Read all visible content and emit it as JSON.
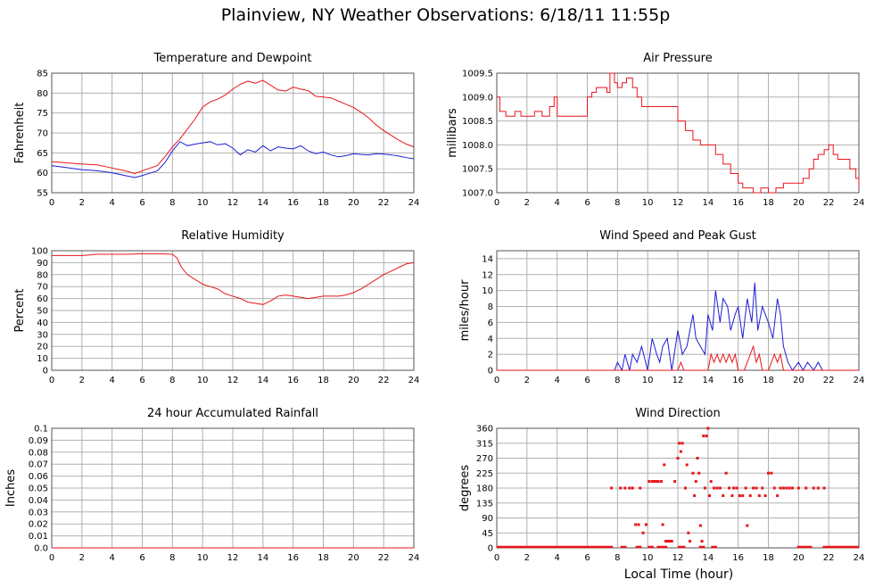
{
  "page": {
    "title": "Plainview, NY Weather Observations: 6/18/11 11:55p",
    "xlabel": "Local Time (hour)"
  },
  "colors": {
    "red": "#e8151b",
    "blue": "#1d1dd8",
    "grid": "#b0b0b0",
    "frame": "#555555"
  },
  "chart_data": [
    {
      "id": "temp",
      "type": "line",
      "title": "Temperature and Dewpoint",
      "ylabel": "Fahrenheit",
      "xlabel": "",
      "xlim": [
        0,
        24
      ],
      "ylim": [
        55,
        85
      ],
      "xticks": [
        "0",
        "2",
        "4",
        "6",
        "8",
        "10",
        "12",
        "14",
        "16",
        "18",
        "20",
        "22",
        "24"
      ],
      "yticks": [
        "55",
        "60",
        "65",
        "70",
        "75",
        "80",
        "85"
      ],
      "grid": true,
      "series": [
        {
          "color": "red",
          "x": [
            0,
            1,
            2,
            3,
            4,
            5,
            5.5,
            6,
            7,
            7.5,
            8,
            8.5,
            9,
            9.5,
            10,
            10.5,
            11,
            11.5,
            12,
            12.5,
            13,
            13.5,
            14,
            14.5,
            15,
            15.5,
            16,
            16.5,
            17,
            17.5,
            18,
            18.5,
            19,
            19.5,
            20,
            20.5,
            21,
            21.5,
            22,
            22.5,
            23,
            23.5,
            24
          ],
          "y": [
            62.8,
            62.5,
            62.2,
            62.0,
            61.2,
            60.4,
            59.8,
            60.5,
            61.8,
            64.0,
            66.5,
            68.5,
            71.0,
            73.5,
            76.5,
            77.8,
            78.5,
            79.5,
            81.0,
            82.2,
            83.0,
            82.5,
            83.2,
            82.0,
            80.8,
            80.5,
            81.5,
            81.0,
            80.6,
            79.2,
            79.0,
            78.8,
            78.0,
            77.2,
            76.4,
            75.2,
            73.8,
            72.0,
            70.6,
            69.4,
            68.2,
            67.2,
            66.5
          ]
        },
        {
          "color": "blue",
          "x": [
            0,
            1,
            2,
            3,
            4,
            5,
            5.5,
            6,
            7,
            7.5,
            8,
            8.5,
            9,
            9.5,
            10,
            10.5,
            11,
            11.5,
            12,
            12.5,
            13,
            13.5,
            14,
            14.5,
            15,
            15.5,
            16,
            16.5,
            17,
            17.5,
            18,
            18.5,
            19,
            19.5,
            20,
            20.5,
            21,
            21.5,
            22,
            22.5,
            23,
            23.5,
            24
          ],
          "y": [
            61.8,
            61.3,
            60.8,
            60.5,
            60.0,
            59.2,
            58.8,
            59.3,
            60.5,
            62.5,
            65.5,
            67.8,
            66.8,
            67.2,
            67.5,
            67.8,
            67.0,
            67.3,
            66.2,
            64.5,
            65.8,
            65.2,
            66.8,
            65.5,
            66.5,
            66.2,
            66.0,
            66.8,
            65.5,
            64.8,
            65.2,
            64.5,
            64.0,
            64.3,
            64.8,
            64.6,
            64.5,
            64.8,
            64.7,
            64.5,
            64.2,
            63.8,
            63.5
          ]
        }
      ]
    },
    {
      "id": "pressure",
      "type": "line",
      "title": "Air Pressure",
      "ylabel": "millibars",
      "xlabel": "",
      "xlim": [
        0,
        24
      ],
      "ylim": [
        1007.0,
        1009.5
      ],
      "xticks": [
        "0",
        "2",
        "4",
        "6",
        "8",
        "10",
        "12",
        "14",
        "16",
        "18",
        "20",
        "22",
        "24"
      ],
      "yticks": [
        "1007.0",
        "1007.5",
        "1008.0",
        "1008.5",
        "1009.0",
        "1009.5"
      ],
      "grid": true,
      "series": [
        {
          "color": "red",
          "step": true,
          "x": [
            0,
            0.2,
            0.6,
            1.2,
            1.6,
            2,
            2.5,
            3,
            3.5,
            3.8,
            4,
            5,
            5.8,
            6,
            6.3,
            6.6,
            7,
            7.3,
            7.5,
            7.8,
            8,
            8.3,
            8.6,
            9,
            9.3,
            9.6,
            10,
            10.5,
            11,
            11.5,
            12,
            12.5,
            13,
            13.5,
            14,
            14.5,
            15,
            15.5,
            16,
            16.3,
            16.6,
            17,
            17.5,
            18,
            18.5,
            19,
            19.5,
            20,
            20.3,
            20.7,
            21,
            21.3,
            21.7,
            22,
            22.3,
            22.6,
            23,
            23.4,
            23.8,
            24
          ],
          "y": [
            1009.0,
            1008.7,
            1008.6,
            1008.7,
            1008.6,
            1008.6,
            1008.7,
            1008.6,
            1008.8,
            1009.0,
            1008.6,
            1008.6,
            1008.6,
            1009.0,
            1009.1,
            1009.2,
            1009.2,
            1009.1,
            1009.5,
            1009.3,
            1009.2,
            1009.3,
            1009.4,
            1009.2,
            1009.0,
            1008.8,
            1008.8,
            1008.8,
            1008.8,
            1008.8,
            1008.5,
            1008.3,
            1008.1,
            1008.0,
            1008.0,
            1007.8,
            1007.6,
            1007.4,
            1007.2,
            1007.1,
            1007.1,
            1007.0,
            1007.1,
            1007.0,
            1007.1,
            1007.2,
            1007.2,
            1007.2,
            1007.3,
            1007.5,
            1007.7,
            1007.8,
            1007.9,
            1008.0,
            1007.8,
            1007.7,
            1007.7,
            1007.5,
            1007.3,
            1007.1
          ]
        }
      ]
    },
    {
      "id": "humidity",
      "type": "line",
      "title": "Relative Humidity",
      "ylabel": "Percent",
      "xlabel": "",
      "xlim": [
        0,
        24
      ],
      "ylim": [
        0,
        100
      ],
      "xticks": [
        "0",
        "2",
        "4",
        "6",
        "8",
        "10",
        "12",
        "14",
        "16",
        "18",
        "20",
        "22",
        "24"
      ],
      "yticks": [
        "0",
        "10",
        "20",
        "30",
        "40",
        "50",
        "60",
        "70",
        "80",
        "90",
        "100"
      ],
      "grid": true,
      "series": [
        {
          "color": "red",
          "x": [
            0,
            1,
            2,
            2.5,
            3,
            4,
            5,
            6,
            7,
            8,
            8.3,
            8.6,
            9,
            9.5,
            10,
            10.5,
            11,
            11.5,
            12,
            12.5,
            13,
            13.5,
            14,
            14.5,
            15,
            15.5,
            16,
            16.5,
            17,
            17.5,
            18,
            18.5,
            19,
            19.5,
            20,
            20.5,
            21,
            21.5,
            22,
            22.5,
            23,
            23.5,
            24
          ],
          "y": [
            96,
            96,
            96,
            96.5,
            97,
            97,
            97,
            97.5,
            97.5,
            97,
            94,
            86,
            80,
            76,
            72,
            70,
            68,
            64,
            62,
            60,
            57,
            56,
            55,
            58,
            62,
            63,
            62,
            61,
            60,
            61,
            62,
            62,
            62,
            63,
            65,
            68,
            72,
            76,
            80,
            83,
            86,
            89,
            90
          ]
        }
      ]
    },
    {
      "id": "wind",
      "type": "line",
      "title": "Wind Speed and Peak Gust",
      "ylabel": "miles/hour",
      "xlabel": "",
      "xlim": [
        0,
        24
      ],
      "ylim": [
        0,
        15
      ],
      "xticks": [
        "0",
        "2",
        "4",
        "6",
        "8",
        "10",
        "12",
        "14",
        "16",
        "18",
        "20",
        "22",
        "24"
      ],
      "yticks": [
        "0",
        "2",
        "4",
        "6",
        "8",
        "10",
        "12",
        "14"
      ],
      "grid": true,
      "series": [
        {
          "color": "blue",
          "x": [
            0,
            7.8,
            8,
            8.3,
            8.5,
            8.8,
            9,
            9.3,
            9.6,
            10,
            10.3,
            10.6,
            10.8,
            11,
            11.3,
            11.6,
            12,
            12.3,
            12.6,
            13,
            13.2,
            13.5,
            13.8,
            14,
            14.3,
            14.5,
            14.8,
            15,
            15.3,
            15.5,
            15.8,
            16,
            16.3,
            16.6,
            16.9,
            17.1,
            17.3,
            17.6,
            18,
            18.3,
            18.6,
            18.8,
            19,
            19.3,
            19.6,
            20,
            20.3,
            20.6,
            21,
            21.3,
            21.6,
            22,
            24
          ],
          "y": [
            0,
            0,
            1,
            0,
            2,
            0,
            2,
            1,
            3,
            0,
            4,
            2,
            1,
            3,
            4,
            0,
            5,
            2,
            3,
            7,
            4,
            3,
            2,
            7,
            5,
            10,
            6,
            9,
            8,
            5,
            7,
            8,
            4,
            9,
            6,
            11,
            5,
            8,
            6,
            4,
            9,
            7,
            3,
            1,
            0,
            1,
            0,
            1,
            0,
            1,
            0,
            0,
            0
          ]
        },
        {
          "color": "red",
          "x": [
            0,
            11.8,
            12,
            12.2,
            12.4,
            13.8,
            14,
            14.2,
            14.4,
            14.6,
            14.8,
            15,
            15.2,
            15.4,
            15.6,
            15.8,
            16,
            16.4,
            16.6,
            16.8,
            17,
            17.2,
            17.4,
            17.6,
            18,
            18.2,
            18.4,
            18.6,
            18.8,
            19,
            24
          ],
          "y": [
            0,
            0,
            0,
            1,
            0,
            0,
            0,
            2,
            1,
            2,
            1,
            2,
            1,
            2,
            1,
            2,
            0,
            0,
            1,
            2,
            3,
            1,
            2,
            0,
            0,
            1,
            2,
            1,
            2,
            0,
            0
          ]
        }
      ]
    },
    {
      "id": "rain",
      "type": "line",
      "title": "24 hour Accumulated Rainfall",
      "ylabel": "Inches",
      "xlabel": "",
      "xlim": [
        0,
        24
      ],
      "ylim": [
        0,
        0.1
      ],
      "xticks": [
        "0",
        "2",
        "4",
        "6",
        "8",
        "10",
        "12",
        "14",
        "16",
        "18",
        "20",
        "22",
        "24"
      ],
      "yticks": [
        "0.0",
        "0.01",
        "0.02",
        "0.03",
        "0.04",
        "0.05",
        "0.06",
        "0.07",
        "0.08",
        "0.09",
        "0.1"
      ],
      "grid": true,
      "series": [
        {
          "color": "red",
          "x": [
            0,
            24
          ],
          "y": [
            0,
            0
          ]
        }
      ]
    },
    {
      "id": "direction",
      "type": "scatter",
      "title": "Wind Direction",
      "ylabel": "degrees",
      "xlabel": "",
      "xlim": [
        0,
        24
      ],
      "ylim": [
        0,
        360
      ],
      "xticks": [
        "0",
        "2",
        "4",
        "6",
        "8",
        "10",
        "12",
        "14",
        "16",
        "18",
        "20",
        "22",
        "24"
      ],
      "yticks": [
        "0",
        "45",
        "90",
        "135",
        "180",
        "225",
        "270",
        "315",
        "360"
      ],
      "grid": true,
      "baseline": {
        "y": 0,
        "ranges": [
          [
            0,
            7.7
          ],
          [
            8.2,
            8.6
          ],
          [
            9.2,
            9.6
          ],
          [
            10.0,
            10.4
          ],
          [
            10.6,
            11.3
          ],
          [
            12.0,
            12.5
          ],
          [
            13.4,
            13.8
          ],
          [
            14.2,
            14.6
          ],
          [
            19.9,
            20.9
          ],
          [
            21.6,
            24
          ]
        ]
      },
      "series": [
        {
          "color": "red",
          "x": [
            7.6,
            8.2,
            8.5,
            8.8,
            9.0,
            9.2,
            9.4,
            9.5,
            9.7,
            9.9,
            10.1,
            10.3,
            10.4,
            10.5,
            10.6,
            10.7,
            10.9,
            11.0,
            11.1,
            11.2,
            11.3,
            11.4,
            11.5,
            11.6,
            11.8,
            12.0,
            12.1,
            12.2,
            12.3,
            12.5,
            12.6,
            12.7,
            12.8,
            13.0,
            13.1,
            13.2,
            13.3,
            13.4,
            13.5,
            13.6,
            13.7,
            13.8,
            13.9,
            14.0,
            14.1,
            14.2,
            14.4,
            14.6,
            14.8,
            15.0,
            15.2,
            15.4,
            15.6,
            15.7,
            15.9,
            16.1,
            16.3,
            16.5,
            16.6,
            16.8,
            17.0,
            17.2,
            17.4,
            17.6,
            17.8,
            18.0,
            18.2,
            18.4,
            18.6,
            18.8,
            19.0,
            19.2,
            19.4,
            19.6,
            20.0,
            20.5,
            21.0,
            21.3,
            21.7
          ],
          "y": [
            180,
            180,
            180,
            180,
            180,
            70,
            70,
            180,
            45,
            70,
            200,
            200,
            200,
            200,
            200,
            200,
            200,
            70,
            250,
            20,
            20,
            20,
            20,
            20,
            200,
            270,
            315,
            290,
            315,
            180,
            250,
            45,
            20,
            225,
            157,
            200,
            270,
            225,
            67,
            20,
            337,
            180,
            337,
            360,
            157,
            200,
            180,
            180,
            180,
            157,
            225,
            180,
            157,
            180,
            180,
            157,
            157,
            180,
            67,
            157,
            180,
            180,
            157,
            180,
            157,
            225,
            225,
            180,
            157,
            180,
            180,
            180,
            180,
            180,
            180,
            180,
            180,
            180,
            180
          ]
        }
      ]
    }
  ]
}
